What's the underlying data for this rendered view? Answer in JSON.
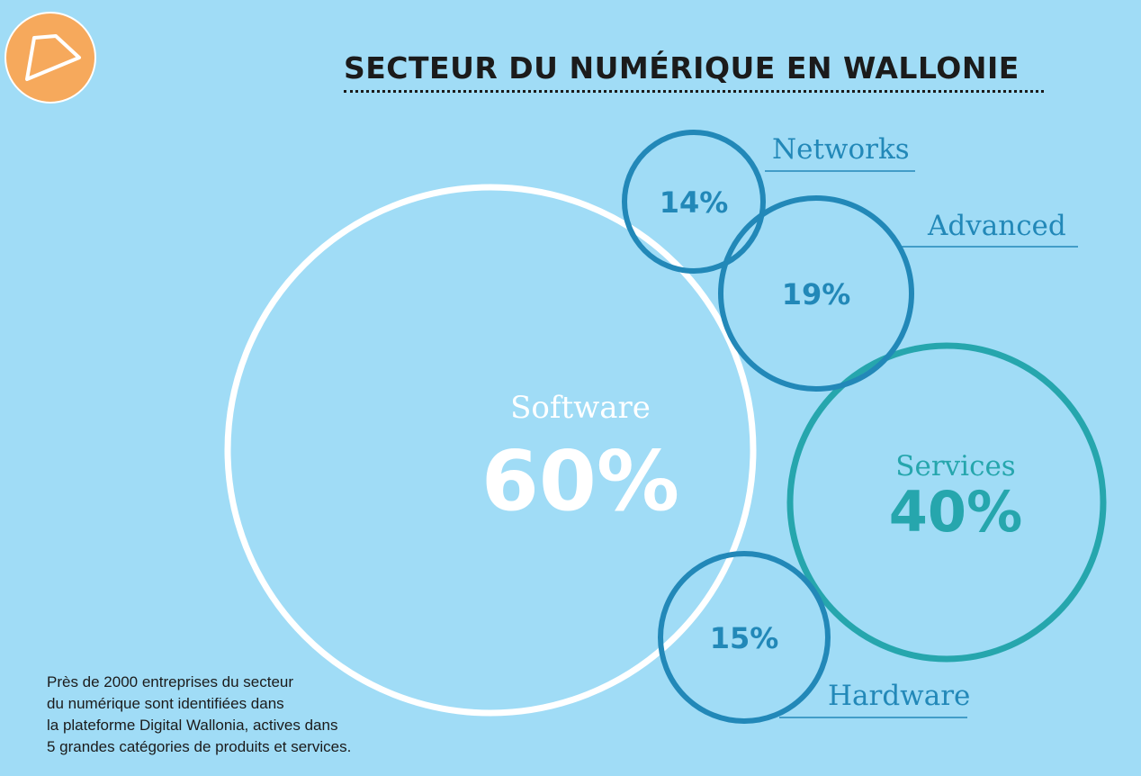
{
  "title": "SECTEUR DU NUMÉRIQUE EN WALLONIE",
  "note_lines": [
    "Près de 2000 entreprises du secteur",
    "du numérique sont identifiées dans",
    "la plateforme Digital Wallonia, actives dans",
    "5 grandes catégories de produits et services."
  ],
  "colors": {
    "background": "#a0dcf6",
    "software": "#ffffff",
    "networks": "#2288b8",
    "advanced": "#2288b8",
    "hardware": "#2288b8",
    "services": "#26a6ad",
    "logo": "#f6a95c"
  },
  "chart_data": {
    "type": "bubble",
    "title": "SECTEUR DU NUMÉRIQUE EN WALLONIE",
    "series": [
      {
        "name": "Software",
        "value": 60,
        "label": "60%"
      },
      {
        "name": "Services",
        "value": 40,
        "label": "40%"
      },
      {
        "name": "Advanced",
        "value": 19,
        "label": "19%"
      },
      {
        "name": "Hardware",
        "value": 15,
        "label": "15%"
      },
      {
        "name": "Networks",
        "value": 14,
        "label": "14%"
      }
    ]
  }
}
